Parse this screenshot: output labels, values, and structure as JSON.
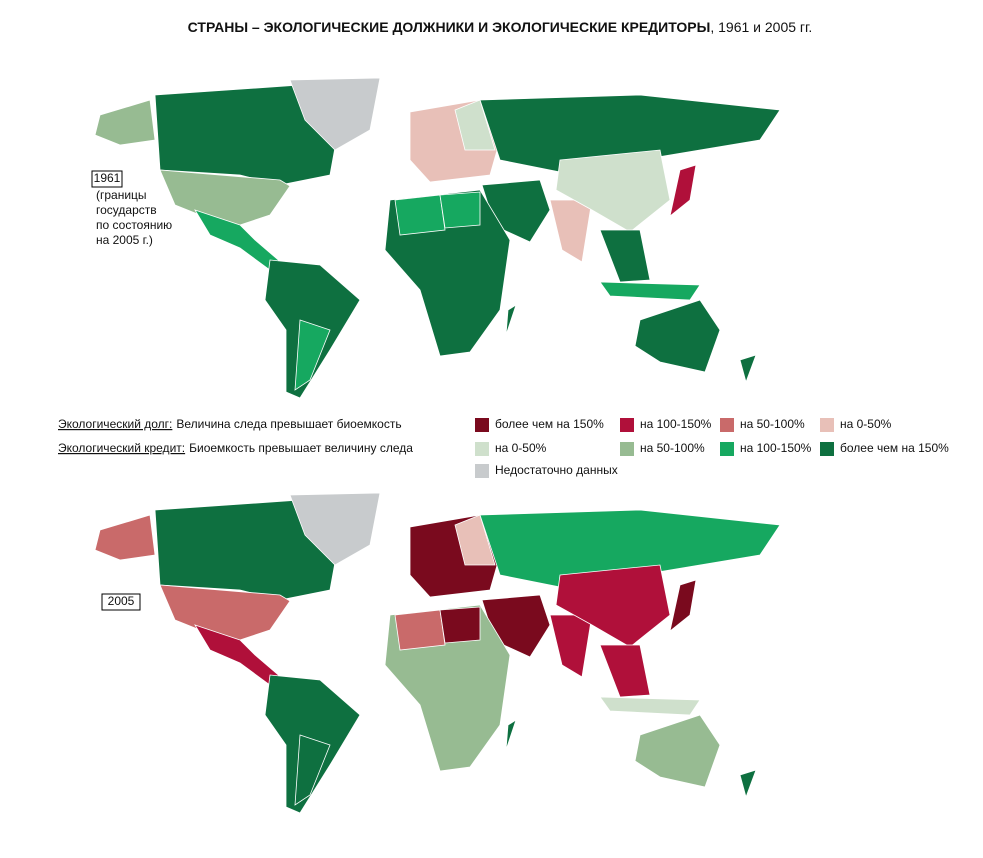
{
  "header": {
    "title_bold": "СТРАНЫ – ЭКОЛОГИЧЕСКИЕ ДОЛЖНИКИ И ЭКОЛОГИЧЕСКИЕ КРЕДИТОРЫ",
    "title_rest": ", 1961 и 2005 гг."
  },
  "map_1961": {
    "label": "1961",
    "note": [
      "(границы",
      "государств",
      "по состоянию",
      "на 2005 г.)"
    ]
  },
  "map_2005": {
    "label": "2005"
  },
  "legend": {
    "debt": {
      "term": "Экологический долг:",
      "text": "Величина следа превышает биоемкость"
    },
    "credit": {
      "term": "Экологический кредит:",
      "text": "Биоемкость превышает величину следа"
    },
    "items": [
      {
        "label": "более чем на 150%",
        "color": "#7a0a1e"
      },
      {
        "label": "на 100-150%",
        "color": "#b0103a"
      },
      {
        "label": "на 50-100%",
        "color": "#c96a6a"
      },
      {
        "label": "на 0-50%",
        "color": "#e8c0b8"
      },
      {
        "label": "на 0-50%",
        "color": "#cfe0cc"
      },
      {
        "label": "на 50-100%",
        "color": "#97bb92"
      },
      {
        "label": "на 100-150%",
        "color": "#16a860"
      },
      {
        "label": "более чем на 150%",
        "color": "#0e7040"
      },
      {
        "label": "Недостаточно данных",
        "color": "#c8cbcd"
      }
    ]
  }
}
